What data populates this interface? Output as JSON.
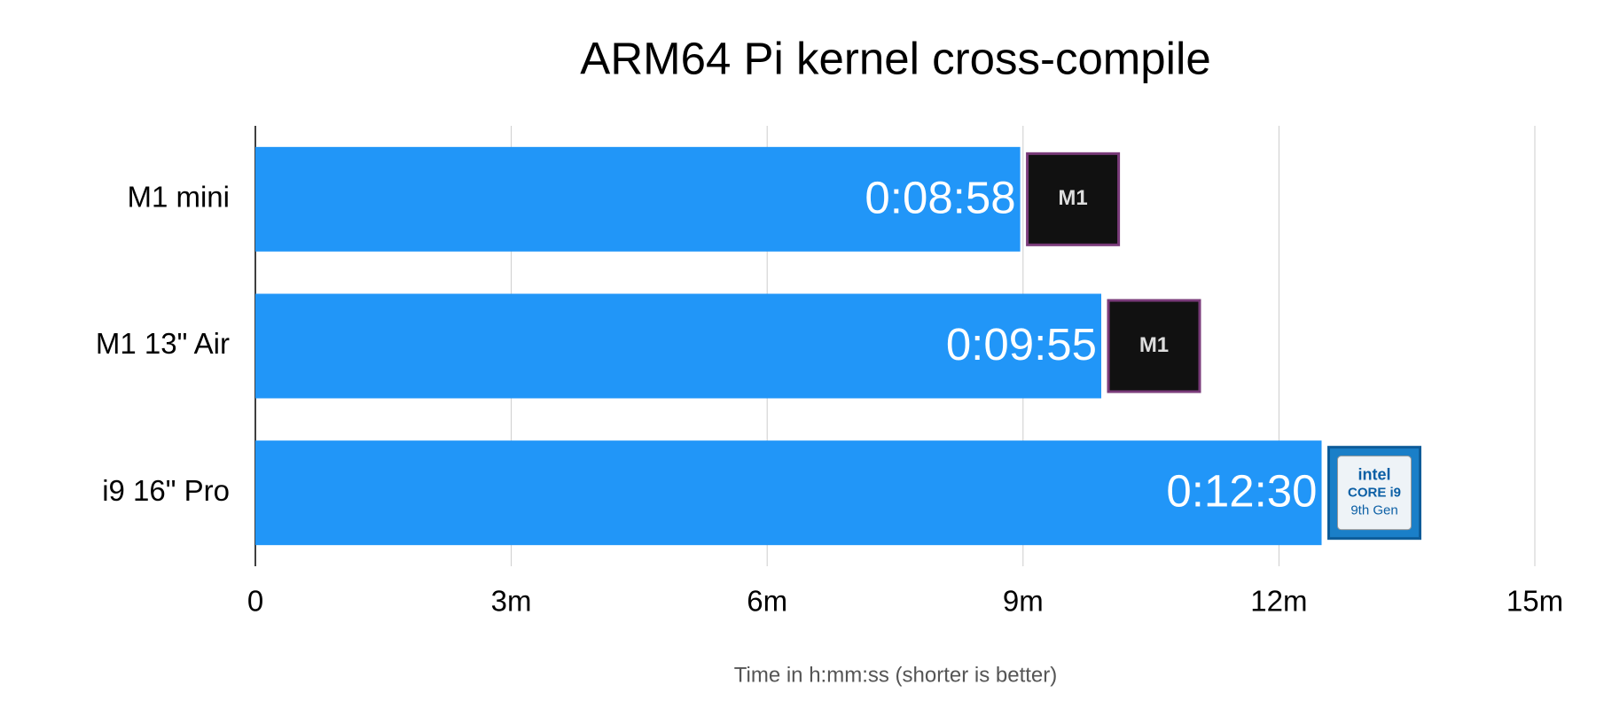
{
  "chart_data": {
    "type": "hbar",
    "title": "ARM64 Pi kernel cross-compile",
    "categories": [
      "M1 mini",
      "M1 13\" Air",
      "i9 16\" Pro"
    ],
    "values": [
      8.9667,
      9.9167,
      12.5
    ],
    "value_labels": [
      "0:08:58",
      "0:09:55",
      "0:12:30"
    ],
    "color": "#2196f8",
    "badges": [
      [
        "M1"
      ],
      [
        "M1"
      ],
      [
        "intel",
        "CORE i9",
        "9th Gen"
      ]
    ],
    "xlabel": "Time in h:mm:ss (shorter is better)",
    "xlim": [
      0,
      15
    ],
    "xticks": [
      0,
      {
        "value": 3,
        "label": "3m"
      },
      {
        "value": 6,
        "label": "6m"
      },
      {
        "value": 9,
        "label": "9m"
      },
      {
        "value": 12,
        "label": "12m"
      },
      {
        "value": 15,
        "label": "15m"
      }
    ],
    "grid": true
  }
}
